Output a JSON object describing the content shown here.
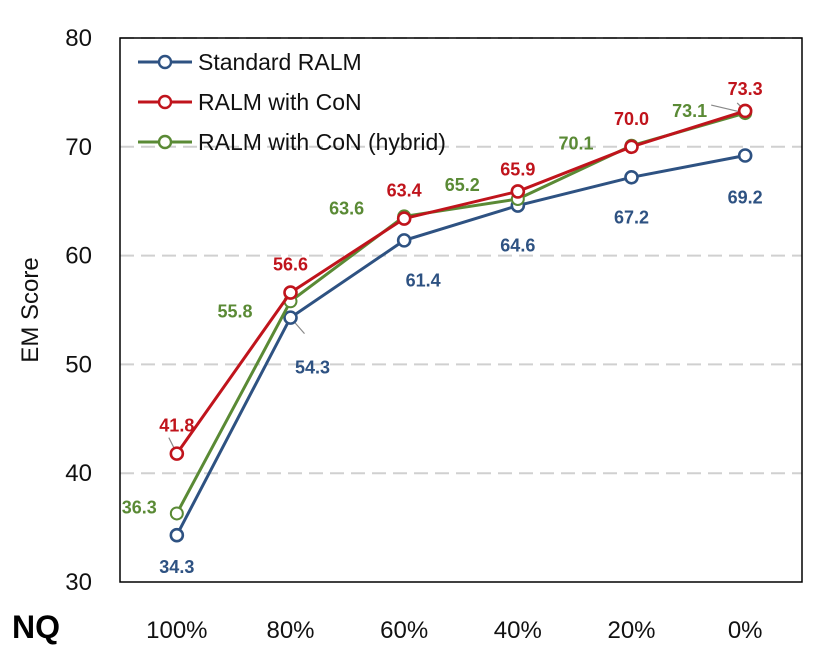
{
  "dataset_label": "NQ",
  "chart_data": {
    "type": "line",
    "title": "",
    "xlabel": "",
    "ylabel": "EM Score",
    "categories": [
      "100%",
      "80%",
      "60%",
      "40%",
      "20%",
      "0%"
    ],
    "ylim": [
      30,
      80
    ],
    "yticks": [
      30,
      40,
      50,
      60,
      70,
      80
    ],
    "grid": "horizontal dashed",
    "legend_position": "top-left",
    "series": [
      {
        "name": "Standard RALM",
        "color": "#2e5282",
        "values": [
          34.3,
          54.3,
          61.4,
          64.6,
          67.2,
          69.2
        ],
        "labels": [
          "34.3",
          "54.3",
          "61.4",
          "64.6",
          "67.2",
          "69.2"
        ]
      },
      {
        "name": "RALM with CoN",
        "color": "#c0141c",
        "values": [
          41.8,
          56.6,
          63.4,
          65.9,
          70.0,
          73.3
        ],
        "labels": [
          "41.8",
          "56.6",
          "63.4",
          "65.9",
          "70.0",
          "73.3"
        ]
      },
      {
        "name": "RALM with CoN (hybrid)",
        "color": "#5a8a35",
        "values": [
          36.3,
          55.8,
          63.6,
          65.2,
          70.1,
          73.1
        ],
        "labels": [
          "36.3",
          "55.8",
          "63.6",
          "65.2",
          "70.1",
          "73.1"
        ]
      }
    ]
  }
}
